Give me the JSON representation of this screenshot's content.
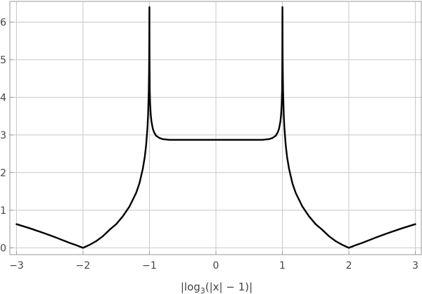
{
  "chart_data": {
    "type": "line",
    "title": "",
    "xlabel_parts": {
      "pre": "|log",
      "sub": "3",
      "post": "(|x| − 1)|"
    },
    "ylabel": "",
    "xlim": [
      -3.1,
      3.1
    ],
    "ylim": [
      -0.18,
      6.55
    ],
    "x_ticks": [
      -3,
      -2,
      -1,
      0,
      1,
      2,
      3
    ],
    "x_tick_labels": [
      "−3",
      "−2",
      "−1",
      "0",
      "1",
      "2",
      "3"
    ],
    "y_ticks": [
      0,
      1,
      2,
      3,
      4,
      5,
      6
    ],
    "y_tick_labels": [
      "0",
      "1",
      "2",
      "3",
      "4",
      "5",
      "6"
    ],
    "grid": true,
    "series": [
      {
        "color": "#000000",
        "x": [
          -3,
          -2.8,
          -2.6,
          -2.4,
          -2.2,
          -2.1,
          -2,
          -1.9,
          -1.8,
          -1.7,
          -1.6,
          -1.5,
          -1.4,
          -1.3,
          -1.2,
          -1.15,
          -1.1,
          -1.07,
          -1.05,
          -1.03,
          -1.02,
          -1.01,
          -1.005,
          -1.0022,
          -1.0011,
          -1.0005,
          -0.9995,
          -0.9989,
          -0.9978,
          -0.995,
          -0.99,
          -0.98,
          -0.97,
          -0.95,
          -0.93,
          -0.9,
          -0.85,
          -0.8,
          -0.7,
          -0.6,
          -0.5,
          -0.4,
          -0.3,
          -0.2,
          -0.1,
          0,
          0.1,
          0.2,
          0.3,
          0.4,
          0.5,
          0.6,
          0.7,
          0.8,
          0.85,
          0.9,
          0.93,
          0.95,
          0.97,
          0.98,
          0.99,
          0.995,
          0.9978,
          0.9989,
          0.9995,
          1.0005,
          1.0011,
          1.0022,
          1.005,
          1.01,
          1.02,
          1.03,
          1.05,
          1.07,
          1.1,
          1.15,
          1.2,
          1.3,
          1.4,
          1.5,
          1.6,
          1.7,
          1.8,
          1.9,
          2,
          2.1,
          2.2,
          2.4,
          2.6,
          2.8,
          3
        ],
        "y": [
          0.63,
          0.52,
          0.4,
          0.27,
          0.13,
          0.07,
          0.0,
          0.08,
          0.18,
          0.31,
          0.48,
          0.63,
          0.84,
          1.1,
          1.46,
          1.72,
          2.1,
          2.42,
          2.73,
          3.19,
          3.56,
          4.19,
          4.82,
          5.57,
          6.2,
          6.4,
          5.7,
          5.25,
          4.75,
          4.17,
          3.84,
          3.53,
          3.36,
          3.17,
          3.07,
          2.98,
          2.92,
          2.89,
          2.87,
          2.87,
          2.87,
          2.87,
          2.87,
          2.87,
          2.87,
          2.87,
          2.87,
          2.87,
          2.87,
          2.87,
          2.87,
          2.87,
          2.87,
          2.89,
          2.92,
          2.98,
          3.07,
          3.17,
          3.36,
          3.53,
          3.84,
          4.17,
          4.75,
          5.25,
          5.7,
          6.4,
          6.2,
          5.57,
          4.82,
          4.19,
          3.56,
          3.19,
          2.73,
          2.42,
          2.1,
          1.72,
          1.46,
          1.1,
          0.84,
          0.63,
          0.48,
          0.31,
          0.18,
          0.08,
          0.0,
          0.07,
          0.13,
          0.27,
          0.4,
          0.52,
          0.63
        ]
      }
    ]
  }
}
